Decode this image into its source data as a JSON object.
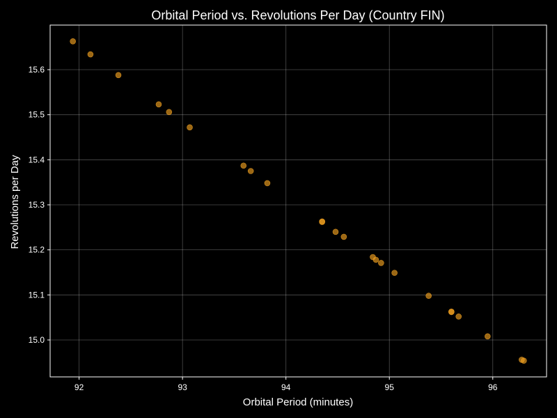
{
  "chart_data": {
    "type": "scatter",
    "title": "Orbital Period vs. Revolutions Per Day (Country FIN)",
    "xlabel": "Orbital Period (minutes)",
    "ylabel": "Revolutions per Day",
    "xlim": [
      91.72,
      96.52
    ],
    "ylim": [
      14.918,
      15.699
    ],
    "xticks": [
      92,
      93,
      94,
      95,
      96
    ],
    "yticks": [
      15.0,
      15.1,
      15.2,
      15.3,
      15.4,
      15.5,
      15.6
    ],
    "grid": true,
    "colors": {
      "background": "#000000",
      "point": "#f0a020",
      "grid": "#ffffff",
      "axis": "#ffffff"
    },
    "points": [
      {
        "x": 91.94,
        "y": 15.663
      },
      {
        "x": 92.11,
        "y": 15.634
      },
      {
        "x": 92.38,
        "y": 15.588
      },
      {
        "x": 92.77,
        "y": 15.523
      },
      {
        "x": 92.87,
        "y": 15.506
      },
      {
        "x": 93.07,
        "y": 15.472
      },
      {
        "x": 93.59,
        "y": 15.387
      },
      {
        "x": 93.66,
        "y": 15.375
      },
      {
        "x": 93.82,
        "y": 15.348
      },
      {
        "x": 94.35,
        "y": 15.263
      },
      {
        "x": 94.35,
        "y": 15.262
      },
      {
        "x": 94.48,
        "y": 15.24
      },
      {
        "x": 94.56,
        "y": 15.229
      },
      {
        "x": 94.84,
        "y": 15.184
      },
      {
        "x": 94.87,
        "y": 15.178
      },
      {
        "x": 94.92,
        "y": 15.171
      },
      {
        "x": 95.05,
        "y": 15.149
      },
      {
        "x": 95.38,
        "y": 15.098
      },
      {
        "x": 95.6,
        "y": 15.063
      },
      {
        "x": 95.6,
        "y": 15.062
      },
      {
        "x": 95.67,
        "y": 15.052
      },
      {
        "x": 95.95,
        "y": 15.008
      },
      {
        "x": 96.28,
        "y": 14.956
      },
      {
        "x": 96.3,
        "y": 14.954
      }
    ]
  }
}
